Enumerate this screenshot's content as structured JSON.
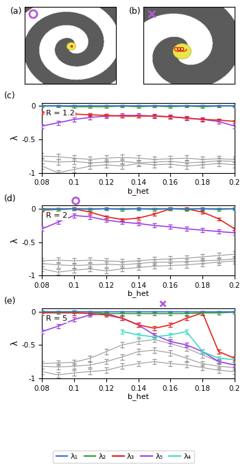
{
  "images": [
    {
      "label": "(a)",
      "marker": "o",
      "color": "#b25ad6"
    },
    {
      "label": "(b)",
      "marker": "x",
      "color": "#b25ad6"
    }
  ],
  "chart_data": [
    {
      "type": "line",
      "label": "(c)",
      "annotation": "R = 1.2",
      "x_label": "b_het",
      "y_label": "λ",
      "xlim": [
        0.08,
        0.2
      ],
      "xticks": [
        0.08,
        0.1,
        0.12,
        0.14,
        0.16,
        0.18,
        0.2
      ],
      "ylim": [
        -1,
        0.05
      ],
      "yticks": [
        -1,
        -0.5,
        0
      ],
      "x": [
        0.08,
        0.09,
        0.1,
        0.11,
        0.12,
        0.13,
        0.14,
        0.15,
        0.16,
        0.17,
        0.18,
        0.19,
        0.2
      ],
      "markers": [],
      "series": [
        {
          "name": "λ₁",
          "color": "#3f6fe0",
          "values": [
            0,
            0,
            0,
            0,
            0,
            0,
            0,
            0,
            0,
            0,
            0,
            0,
            0
          ],
          "errors": [
            0.01,
            0.01,
            0.01,
            0.01,
            0.01,
            0.01,
            0.01,
            0.01,
            0.01,
            0.01,
            0.01,
            0.01,
            0.01
          ]
        },
        {
          "name": "λ₂",
          "color": "#2f9e2f",
          "values": [
            0,
            0,
            -0.01,
            -0.01,
            -0.01,
            0,
            -0.01,
            0,
            -0.01,
            0,
            -0.01,
            0,
            0
          ],
          "errors": [
            0.02,
            0.02,
            0.02,
            0.02,
            0.02,
            0.02,
            0.02,
            0.02,
            0.02,
            0.02,
            0.02,
            0.02,
            0.02
          ]
        },
        {
          "name": "λ₃",
          "color": "#e2231a",
          "values": [
            -0.1,
            -0.1,
            -0.12,
            -0.13,
            -0.14,
            -0.15,
            -0.15,
            -0.15,
            -0.16,
            -0.18,
            -0.2,
            -0.21,
            -0.23
          ],
          "errors": [
            0.02,
            0.02,
            0.02,
            0.02,
            0.02,
            0.02,
            0.02,
            0.02,
            0.02,
            0.02,
            0.02,
            0.02,
            0.02
          ]
        },
        {
          "name": "λ₅",
          "color": "#a040e0",
          "values": [
            -0.3,
            -0.25,
            -0.2,
            -0.17,
            -0.15,
            -0.14,
            -0.14,
            -0.15,
            -0.16,
            -0.18,
            -0.2,
            -0.23,
            -0.3
          ],
          "errors": [
            0.03,
            0.03,
            0.03,
            0.03,
            0.03,
            0.03,
            0.03,
            0.03,
            0.03,
            0.03,
            0.03,
            0.03,
            0.03
          ]
        },
        {
          "color": "#999999",
          "values": [
            -0.75,
            -0.76,
            -0.78,
            -0.8,
            -0.78,
            -0.77,
            -0.78,
            -0.8,
            -0.79,
            -0.78,
            -0.8,
            -0.79,
            -0.8
          ],
          "errors": [
            0.04,
            0.04,
            0.04,
            0.04,
            0.04,
            0.04,
            0.04,
            0.04,
            0.04,
            0.04,
            0.04,
            0.04,
            0.04
          ]
        },
        {
          "color": "#999999",
          "values": [
            -0.82,
            -0.84,
            -0.83,
            -0.85,
            -0.84,
            -0.83,
            -0.85,
            -0.84,
            -0.83,
            -0.85,
            -0.84,
            -0.82,
            -0.83
          ],
          "errors": [
            0.04,
            0.04,
            0.04,
            0.04,
            0.04,
            0.04,
            0.04,
            0.04,
            0.04,
            0.04,
            0.04,
            0.04,
            0.04
          ]
        },
        {
          "color": "#999999",
          "values": [
            -0.9,
            -1.0,
            -0.95,
            -0.9,
            -0.88,
            -0.9,
            -0.86,
            -0.88,
            -0.87,
            -0.9,
            -0.88,
            -0.86,
            -0.88
          ],
          "errors": [
            0.04,
            0.04,
            0.04,
            0.04,
            0.04,
            0.04,
            0.04,
            0.04,
            0.04,
            0.04,
            0.04,
            0.04,
            0.04
          ]
        }
      ]
    },
    {
      "type": "line",
      "label": "(d)",
      "annotation": "R = 2",
      "x_label": "b_het",
      "y_label": "λ",
      "xlim": [
        0.08,
        0.2
      ],
      "xticks": [
        0.08,
        0.1,
        0.12,
        0.14,
        0.16,
        0.18,
        0.2
      ],
      "ylim": [
        -1,
        0.05
      ],
      "yticks": [
        -1,
        -0.5,
        0
      ],
      "x": [
        0.08,
        0.09,
        0.1,
        0.11,
        0.12,
        0.13,
        0.14,
        0.15,
        0.16,
        0.17,
        0.18,
        0.19,
        0.2
      ],
      "markers": [
        {
          "x": 0.101,
          "y": 0.12,
          "marker": "o",
          "color": "#b25ad6"
        }
      ],
      "series": [
        {
          "name": "λ₁",
          "color": "#3f6fe0",
          "values": [
            0,
            0,
            0,
            0,
            0,
            0,
            0,
            0,
            0,
            0,
            0,
            0,
            0
          ],
          "errors": [
            0.01,
            0.01,
            0.01,
            0.01,
            0.01,
            0.01,
            0.01,
            0.01,
            0.01,
            0.01,
            0.01,
            0.01,
            0.01
          ]
        },
        {
          "name": "λ₂",
          "color": "#2f9e2f",
          "values": [
            -0.01,
            -0.01,
            0,
            -0.01,
            0,
            -0.01,
            0,
            -0.01,
            0,
            -0.01,
            0,
            -0.01,
            0
          ],
          "errors": [
            0.02,
            0.02,
            0.02,
            0.02,
            0.02,
            0.02,
            0.02,
            0.02,
            0.02,
            0.02,
            0.02,
            0.02,
            0.02
          ]
        },
        {
          "name": "λ₃",
          "color": "#e2231a",
          "values": [
            -0.02,
            -0.01,
            0,
            -0.05,
            -0.12,
            -0.16,
            -0.14,
            -0.08,
            0,
            0,
            -0.05,
            -0.15,
            -0.3
          ],
          "errors": [
            0.02,
            0.02,
            0.02,
            0.02,
            0.02,
            0.02,
            0.02,
            0.02,
            0.02,
            0.02,
            0.02,
            0.02,
            0.02
          ]
        },
        {
          "name": "λ₅",
          "color": "#a040e0",
          "values": [
            -0.3,
            -0.2,
            -0.1,
            -0.12,
            -0.17,
            -0.2,
            -0.22,
            -0.25,
            -0.27,
            -0.3,
            -0.32,
            -0.34,
            -0.36
          ],
          "errors": [
            0.03,
            0.03,
            0.03,
            0.03,
            0.03,
            0.03,
            0.03,
            0.03,
            0.03,
            0.03,
            0.03,
            0.03,
            0.03
          ]
        },
        {
          "color": "#999999",
          "values": [
            -0.78,
            -0.77,
            -0.78,
            -0.77,
            -0.78,
            -0.79,
            -0.78,
            -0.76,
            -0.75,
            -0.74,
            -0.72,
            -0.7,
            -0.68
          ],
          "errors": [
            0.04,
            0.04,
            0.04,
            0.04,
            0.04,
            0.04,
            0.04,
            0.04,
            0.04,
            0.04,
            0.04,
            0.04,
            0.04
          ]
        },
        {
          "color": "#999999",
          "values": [
            -0.82,
            -0.84,
            -0.85,
            -0.84,
            -0.83,
            -0.84,
            -0.82,
            -0.8,
            -0.8,
            -0.79,
            -0.78,
            -0.77,
            -0.75
          ],
          "errors": [
            0.04,
            0.04,
            0.04,
            0.04,
            0.04,
            0.04,
            0.04,
            0.04,
            0.04,
            0.04,
            0.04,
            0.04,
            0.04
          ]
        },
        {
          "color": "#999999",
          "values": [
            -0.9,
            -0.95,
            -0.92,
            -0.9,
            -0.93,
            -0.9,
            -0.88,
            -0.86,
            -0.85,
            -0.84,
            -0.82,
            -0.8,
            -0.78
          ],
          "errors": [
            0.04,
            0.04,
            0.04,
            0.04,
            0.04,
            0.04,
            0.04,
            0.04,
            0.04,
            0.04,
            0.04,
            0.04,
            0.04
          ]
        }
      ]
    },
    {
      "type": "line",
      "label": "(e)",
      "annotation": "R = 5",
      "x_label": "b_het",
      "y_label": "λ",
      "xlim": [
        0.08,
        0.2
      ],
      "xticks": [
        0.08,
        0.1,
        0.12,
        0.14,
        0.16,
        0.18,
        0.2
      ],
      "ylim": [
        -1,
        0.05
      ],
      "yticks": [
        -1,
        -0.5,
        0
      ],
      "x": [
        0.08,
        0.09,
        0.1,
        0.11,
        0.12,
        0.13,
        0.14,
        0.15,
        0.16,
        0.17,
        0.18,
        0.19,
        0.2
      ],
      "markers": [
        {
          "x": 0.155,
          "y": 0.12,
          "marker": "x",
          "color": "#b25ad6"
        }
      ],
      "legend": "lower center",
      "series": [
        {
          "name": "λ₁",
          "color": "#3f6fe0",
          "values": [
            0,
            0,
            0,
            0,
            0,
            0,
            0,
            0,
            0,
            0,
            0,
            0,
            0
          ],
          "errors": [
            0.01,
            0.01,
            0.01,
            0.01,
            0.01,
            0.01,
            0.01,
            0.01,
            0.01,
            0.01,
            0.01,
            0.01,
            0.01
          ]
        },
        {
          "name": "λ₂",
          "color": "#2f9e2f",
          "values": [
            0,
            -0.01,
            0,
            -0.01,
            -0.03,
            -0.03,
            -0.03,
            -0.03,
            -0.03,
            -0.03,
            -0.02,
            -0.02,
            -0.01
          ],
          "errors": [
            0.02,
            0.02,
            0.02,
            0.02,
            0.02,
            0.02,
            0.02,
            0.02,
            0.02,
            0.02,
            0.02,
            0.02,
            0.02
          ]
        },
        {
          "name": "λ₃",
          "color": "#e2231a",
          "values": [
            -0.02,
            -0.02,
            -0.02,
            -0.03,
            -0.05,
            -0.1,
            -0.2,
            -0.25,
            -0.2,
            -0.1,
            -0.02,
            -0.6,
            -0.7
          ],
          "errors": [
            0.03,
            0.03,
            0.03,
            0.03,
            0.03,
            0.03,
            0.03,
            0.03,
            0.03,
            0.03,
            0.03,
            0.03,
            0.03
          ]
        },
        {
          "name": "λ₄",
          "color": "#3fdcc0",
          "values": [
            null,
            null,
            null,
            null,
            null,
            -0.3,
            -0.35,
            -0.38,
            -0.35,
            -0.3,
            -0.6,
            -0.7,
            -0.72
          ],
          "errors": [
            null,
            null,
            null,
            null,
            null,
            0.03,
            0.03,
            0.03,
            0.03,
            0.03,
            0.03,
            0.03,
            0.03
          ]
        },
        {
          "name": "λ₅",
          "color": "#a040e0",
          "values": [
            -0.3,
            -0.22,
            -0.12,
            -0.05,
            -0.03,
            -0.1,
            -0.2,
            -0.35,
            -0.45,
            -0.5,
            -0.6,
            -0.75,
            -0.8
          ],
          "errors": [
            0.03,
            0.03,
            0.03,
            0.03,
            0.03,
            0.03,
            0.03,
            0.03,
            0.03,
            0.03,
            0.03,
            0.03,
            0.03
          ]
        },
        {
          "color": "#999999",
          "values": [
            -0.78,
            -0.77,
            -0.76,
            -0.7,
            -0.6,
            -0.5,
            -0.45,
            -0.42,
            -0.48,
            -0.55,
            -0.65,
            -0.75,
            -0.8
          ],
          "errors": [
            0.04,
            0.04,
            0.04,
            0.04,
            0.04,
            0.04,
            0.04,
            0.04,
            0.04,
            0.04,
            0.04,
            0.04,
            0.04
          ]
        },
        {
          "color": "#999999",
          "values": [
            -0.82,
            -0.83,
            -0.82,
            -0.8,
            -0.75,
            -0.68,
            -0.6,
            -0.58,
            -0.62,
            -0.7,
            -0.78,
            -0.82,
            -0.84
          ],
          "errors": [
            0.04,
            0.04,
            0.04,
            0.04,
            0.04,
            0.04,
            0.04,
            0.04,
            0.04,
            0.04,
            0.04,
            0.04,
            0.04
          ]
        },
        {
          "color": "#999999",
          "values": [
            -0.9,
            -0.95,
            -0.92,
            -0.9,
            -0.88,
            -0.82,
            -0.78,
            -0.75,
            -0.78,
            -0.8,
            -0.84,
            -0.88,
            -0.9
          ],
          "errors": [
            0.04,
            0.04,
            0.04,
            0.04,
            0.04,
            0.04,
            0.04,
            0.04,
            0.04,
            0.04,
            0.04,
            0.04,
            0.04
          ]
        }
      ]
    }
  ]
}
